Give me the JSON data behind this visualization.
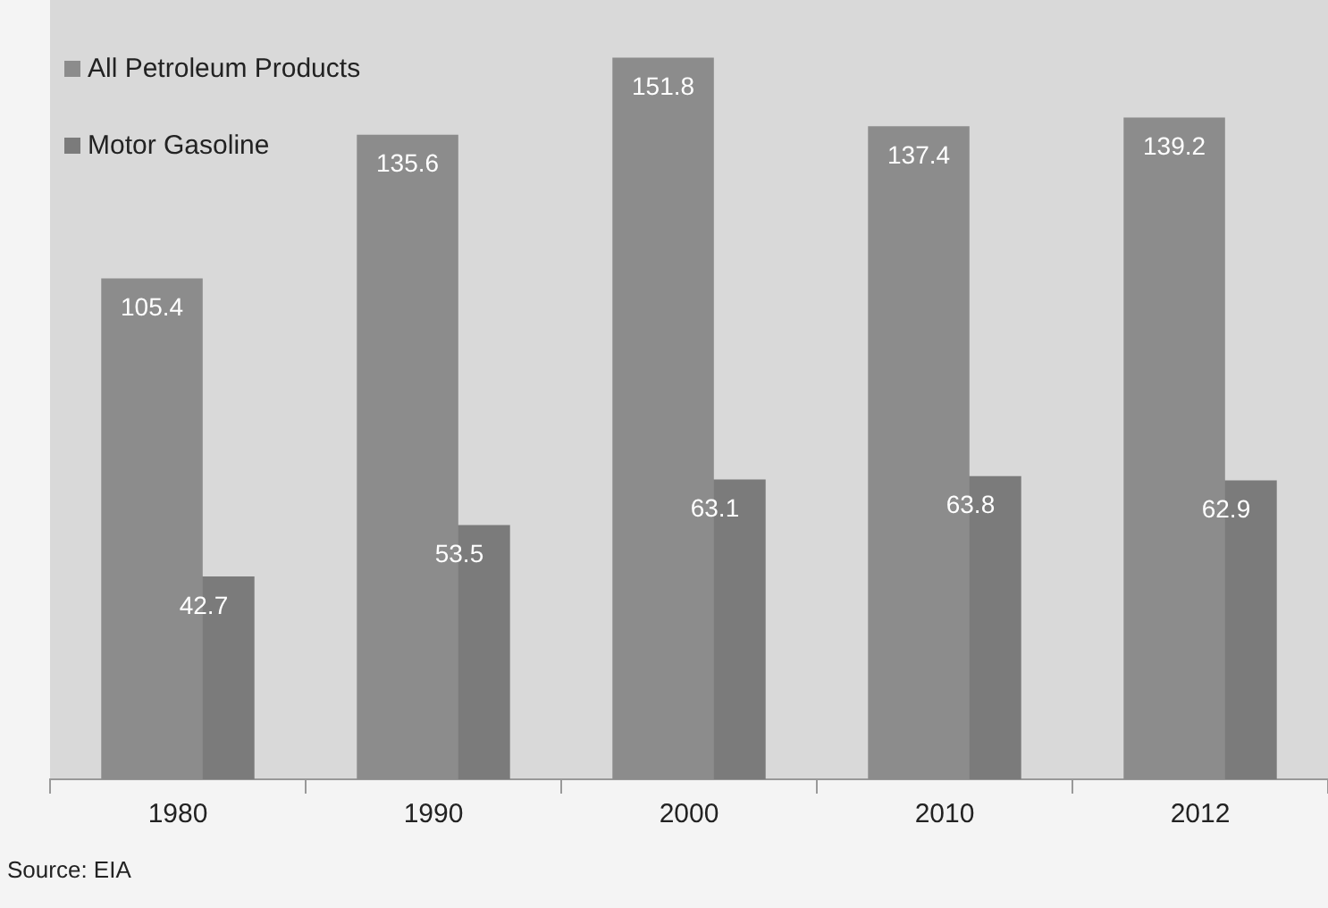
{
  "chart_data": {
    "type": "bar",
    "categories": [
      "1980",
      "1990",
      "2000",
      "2010",
      "2012"
    ],
    "series": [
      {
        "name": "All Petroleum Products",
        "color": "#8c8c8c",
        "values": [
          105.4,
          135.6,
          151.8,
          137.4,
          139.2
        ]
      },
      {
        "name": "Motor Gasoline",
        "color": "#7b7b7b",
        "values": [
          42.7,
          53.5,
          63.1,
          63.8,
          62.9
        ]
      }
    ],
    "data_labels": true,
    "legend": "top left",
    "grid": false,
    "annotations": [
      "Source: EIA"
    ]
  }
}
